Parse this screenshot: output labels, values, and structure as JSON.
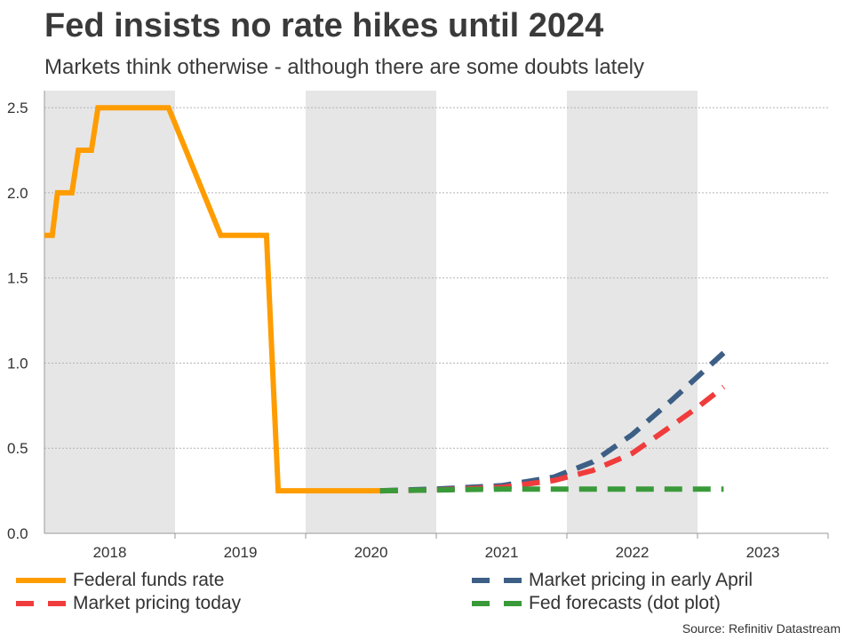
{
  "title": "Fed insists no rate hikes until 2024",
  "subtitle": "Markets think otherwise - although there are some doubts lately",
  "source": "Source: Refinitiv Datastream",
  "colors": {
    "fed_funds": "#ff9c00",
    "early_april": "#3d5f86",
    "today": "#f03c3c",
    "dot_plot": "#3a9a3a",
    "shade": "#e6e6e6",
    "grid": "#b4b4b4"
  },
  "chart_data": {
    "type": "line",
    "xlim": [
      2018.0,
      2024.0
    ],
    "ylim": [
      0,
      2.6
    ],
    "y_ticks": [
      "0.0",
      "0.5",
      "1.0",
      "1.5",
      "2.0",
      "2.5"
    ],
    "y_tick_values": [
      0,
      0.5,
      1.0,
      1.5,
      2.0,
      2.5
    ],
    "x_tick_labels": [
      {
        "label": "2018",
        "value": 2018.5
      },
      {
        "label": "2019",
        "value": 2019.5
      },
      {
        "label": "2020",
        "value": 2020.5
      },
      {
        "label": "2021",
        "value": 2021.5
      },
      {
        "label": "2022",
        "value": 2022.5
      },
      {
        "label": "2023",
        "value": 2023.5
      }
    ],
    "shaded_years": [
      2018,
      2020,
      2022,
      2024
    ],
    "grid": true,
    "legend_position": "bottom",
    "series": [
      {
        "name": "Federal funds rate",
        "style": "solid",
        "color_key": "fed_funds",
        "points": [
          [
            2018.0,
            1.75
          ],
          [
            2018.06,
            1.75
          ],
          [
            2018.1,
            2.0
          ],
          [
            2018.21,
            2.0
          ],
          [
            2018.26,
            2.25
          ],
          [
            2018.36,
            2.25
          ],
          [
            2018.41,
            2.5
          ],
          [
            2018.95,
            2.5
          ],
          [
            2019.35,
            1.75
          ],
          [
            2019.7,
            1.75
          ],
          [
            2019.79,
            0.25
          ],
          [
            2020.57,
            0.25
          ]
        ]
      },
      {
        "name": "Market pricing in early April",
        "style": "dashed",
        "color_key": "early_april",
        "points": [
          [
            2020.57,
            0.25
          ],
          [
            2021.0,
            0.26
          ],
          [
            2021.5,
            0.28
          ],
          [
            2021.9,
            0.33
          ],
          [
            2022.2,
            0.42
          ],
          [
            2022.5,
            0.58
          ],
          [
            2022.8,
            0.78
          ],
          [
            2023.0,
            0.92
          ],
          [
            2023.2,
            1.06
          ]
        ]
      },
      {
        "name": "Market pricing today",
        "style": "dashed",
        "color_key": "today",
        "points": [
          [
            2020.57,
            0.25
          ],
          [
            2021.0,
            0.255
          ],
          [
            2021.5,
            0.27
          ],
          [
            2021.9,
            0.31
          ],
          [
            2022.2,
            0.37
          ],
          [
            2022.5,
            0.47
          ],
          [
            2022.8,
            0.63
          ],
          [
            2023.0,
            0.74
          ],
          [
            2023.2,
            0.86
          ]
        ]
      },
      {
        "name": "Fed forecasts (dot plot)",
        "style": "dashed",
        "color_key": "dot_plot",
        "points": [
          [
            2020.57,
            0.25
          ],
          [
            2021.0,
            0.255
          ],
          [
            2021.5,
            0.26
          ],
          [
            2022.0,
            0.26
          ],
          [
            2022.5,
            0.26
          ],
          [
            2023.2,
            0.26
          ]
        ]
      }
    ]
  },
  "legend": {
    "left": [
      {
        "label": "Federal funds rate",
        "color_key": "fed_funds",
        "style": "solid"
      },
      {
        "label": "Market pricing today",
        "color_key": "today",
        "style": "dashed"
      }
    ],
    "right": [
      {
        "label": "Market pricing in early April",
        "color_key": "early_april",
        "style": "dashed"
      },
      {
        "label": "Fed forecasts (dot plot)",
        "color_key": "dot_plot",
        "style": "dashed"
      }
    ]
  }
}
